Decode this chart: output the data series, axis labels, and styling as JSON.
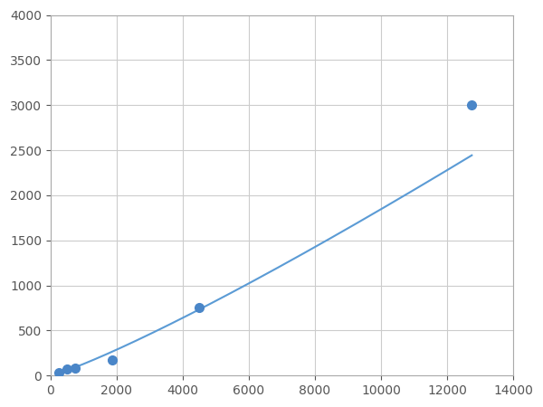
{
  "x": [
    250,
    500,
    750,
    1875,
    4500,
    12750
  ],
  "y": [
    30,
    70,
    80,
    175,
    750,
    3000
  ],
  "line_color": "#5b9bd5",
  "marker_color": "#4a86c8",
  "marker_size": 7,
  "xlim": [
    0,
    14000
  ],
  "ylim": [
    0,
    4000
  ],
  "xticks": [
    0,
    2000,
    4000,
    6000,
    8000,
    10000,
    12000,
    14000
  ],
  "yticks": [
    0,
    500,
    1000,
    1500,
    2000,
    2500,
    3000,
    3500,
    4000
  ],
  "grid_color": "#cccccc",
  "bg_color": "#ffffff",
  "spine_color": "#aaaaaa",
  "tick_label_color": "#555555",
  "tick_fontsize": 10
}
